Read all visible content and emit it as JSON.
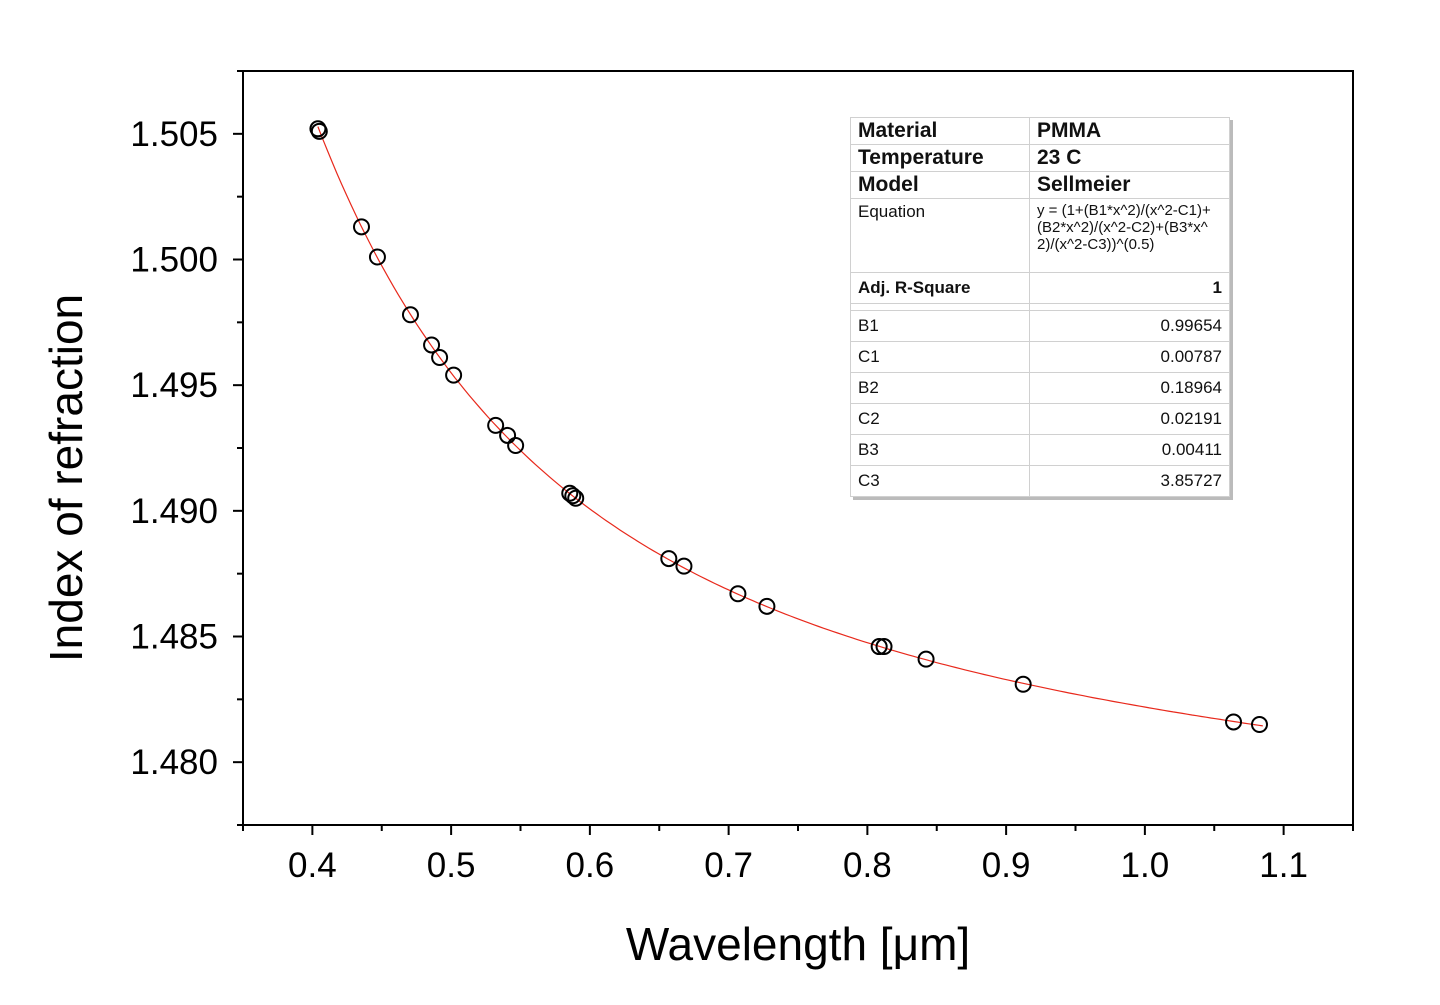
{
  "chart_data": {
    "type": "scatter",
    "xlabel": "Wavelength [μm]",
    "ylabel": "Index of refraction",
    "xlim": [
      0.35,
      1.15
    ],
    "ylim": [
      1.4775,
      1.5075
    ],
    "xticks": [
      "0.4",
      "0.5",
      "0.6",
      "0.7",
      "0.8",
      "0.9",
      "1.0",
      "1.1"
    ],
    "yticks": [
      "1.480",
      "1.485",
      "1.490",
      "1.495",
      "1.500",
      "1.505"
    ],
    "grid": false,
    "marker_color": "#000000",
    "fit_color": "#e8291c",
    "points": [
      [
        0.404,
        1.5052
      ],
      [
        0.405,
        1.5051
      ],
      [
        0.4354,
        1.5013
      ],
      [
        0.4469,
        1.5001
      ],
      [
        0.4707,
        1.4978
      ],
      [
        0.4859,
        1.4966
      ],
      [
        0.4917,
        1.4961
      ],
      [
        0.5018,
        1.4954
      ],
      [
        0.5321,
        1.4934
      ],
      [
        0.5407,
        1.493
      ],
      [
        0.5465,
        1.4926
      ],
      [
        0.5855,
        1.4907
      ],
      [
        0.5877,
        1.4906
      ],
      [
        0.5898,
        1.4905
      ],
      [
        0.6569,
        1.4881
      ],
      [
        0.6678,
        1.4878
      ],
      [
        0.7067,
        1.4867
      ],
      [
        0.7276,
        1.4862
      ],
      [
        0.8085,
        1.4846
      ],
      [
        0.812,
        1.4846
      ],
      [
        0.8423,
        1.4841
      ],
      [
        0.9123,
        1.4831
      ],
      [
        1.0639,
        1.4816
      ],
      [
        1.0826,
        1.4815
      ]
    ],
    "fit": {
      "table": {
        "material_label": "Material",
        "material": "PMMA",
        "temperature_label": "Temperature",
        "temperature": "23 C",
        "model_label": "Model",
        "model": "Sellmeier",
        "equation_label": "Equation",
        "equation": "y = (1+(B1*x^2)/(x^2-C1)+(B2*x^2)/(x^2-C2)+(B3*x^2)/(x^2-C3))^(0.5)",
        "r2_label": "Adj. R-Square",
        "r2": "1",
        "params": [
          {
            "name": "B1",
            "value": "0.99654"
          },
          {
            "name": "C1",
            "value": "0.00787"
          },
          {
            "name": "B2",
            "value": "0.18964"
          },
          {
            "name": "C2",
            "value": "0.02191"
          },
          {
            "name": "B3",
            "value": "0.00411"
          },
          {
            "name": "C3",
            "value": "3.85727"
          }
        ]
      },
      "x_range": [
        0.404,
        1.085
      ]
    }
  }
}
